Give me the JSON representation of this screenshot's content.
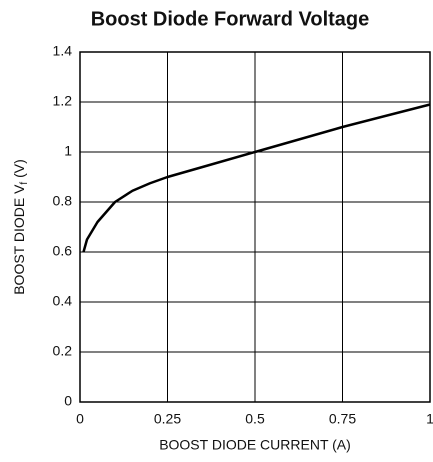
{
  "chart_data": {
    "type": "line",
    "title": "Boost Diode Forward Voltage",
    "xlabel": "BOOST DIODE CURRENT (A)",
    "ylabel": [
      "BOOST DIODE V",
      "f",
      " (V)"
    ],
    "series": [
      {
        "color": "#000000",
        "x": [
          0.01,
          0.02,
          0.05,
          0.1,
          0.15,
          0.2,
          0.25,
          0.35,
          0.5,
          0.75,
          1.0
        ],
        "values": [
          0.6,
          0.65,
          0.72,
          0.8,
          0.845,
          0.875,
          0.9,
          0.94,
          1.0,
          1.1,
          1.19
        ]
      }
    ],
    "xlim": [
      0,
      1
    ],
    "xticks": [
      0,
      0.25,
      0.5,
      0.75,
      1
    ],
    "ylim": [
      0,
      1.4
    ],
    "yticks": [
      0,
      0.2,
      0.4,
      0.6,
      0.8,
      1,
      1.2,
      1.4
    ],
    "grid": true
  }
}
